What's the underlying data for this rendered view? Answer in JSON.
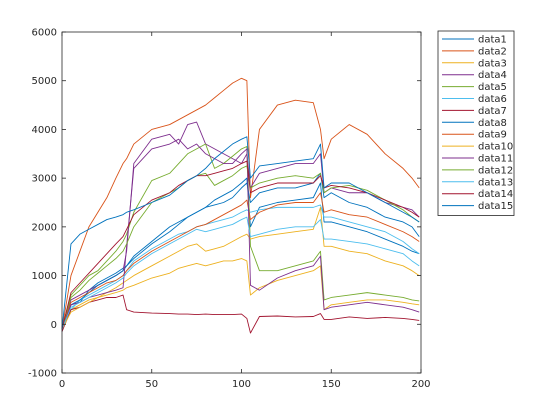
{
  "chart_data": {
    "type": "line",
    "xlim": [
      0,
      200
    ],
    "ylim": [
      -1000,
      6000
    ],
    "x_ticks": [
      0,
      50,
      100,
      150,
      200
    ],
    "y_ticks": [
      -1000,
      0,
      1000,
      2000,
      3000,
      4000,
      5000,
      6000
    ],
    "x_tick_labels": [
      "0",
      "50",
      "100",
      "150",
      "200"
    ],
    "y_tick_labels": [
      "-1000",
      "0",
      "1000",
      "2000",
      "3000",
      "4000",
      "5000",
      "6000"
    ],
    "grid": false,
    "legend_position": "outside-top-right",
    "x": [
      0,
      5,
      10,
      15,
      20,
      25,
      30,
      34,
      36,
      40,
      50,
      60,
      65,
      70,
      75,
      80,
      85,
      90,
      95,
      100,
      103,
      105,
      110,
      120,
      130,
      140,
      144,
      146,
      150,
      160,
      170,
      180,
      190,
      195,
      199
    ],
    "series": [
      {
        "name": "data1",
        "color": "#0072BD",
        "values": [
          -150,
          400,
          450,
          700,
          850,
          950,
          1050,
          1150,
          1200,
          1350,
          1650,
          1900,
          2050,
          2200,
          2300,
          2400,
          2550,
          2650,
          2750,
          2900,
          3000,
          2000,
          2400,
          2500,
          2550,
          2600,
          2900,
          2100,
          2100,
          2000,
          1900,
          1750,
          1600,
          1500,
          1450
        ]
      },
      {
        "name": "data2",
        "color": "#D95319",
        "values": [
          -100,
          1000,
          1500,
          2000,
          2300,
          2600,
          3000,
          3300,
          3400,
          3700,
          4000,
          4100,
          4200,
          4300,
          4400,
          4500,
          4650,
          4800,
          4950,
          5050,
          5000,
          2600,
          4000,
          4500,
          4600,
          4550,
          4000,
          3400,
          3800,
          4100,
          3900,
          3500,
          3200,
          3000,
          2800
        ]
      },
      {
        "name": "data3",
        "color": "#EDB120",
        "values": [
          -100,
          300,
          400,
          500,
          550,
          600,
          650,
          700,
          750,
          800,
          950,
          1050,
          1150,
          1200,
          1250,
          1200,
          1250,
          1300,
          1300,
          1350,
          1300,
          600,
          750,
          900,
          1000,
          1100,
          1200,
          300,
          400,
          450,
          500,
          500,
          450,
          420,
          400
        ]
      },
      {
        "name": "data4",
        "color": "#7E2F8E",
        "values": [
          -100,
          500,
          600,
          700,
          800,
          900,
          1000,
          1100,
          1500,
          3300,
          3800,
          3900,
          3700,
          4100,
          4150,
          3700,
          3600,
          3500,
          3400,
          3300,
          3500,
          2800,
          3100,
          3200,
          3300,
          3300,
          3500,
          2700,
          2800,
          2700,
          2700,
          2500,
          2400,
          2350,
          2200
        ]
      },
      {
        "name": "data5",
        "color": "#77AC30",
        "values": [
          -100,
          600,
          800,
          1000,
          1100,
          1300,
          1500,
          1700,
          1850,
          2300,
          2950,
          3100,
          3300,
          3500,
          3600,
          3700,
          3200,
          3300,
          3450,
          3600,
          3650,
          1600,
          1100,
          1100,
          1200,
          1300,
          1500,
          500,
          550,
          600,
          650,
          600,
          550,
          500,
          480
        ]
      },
      {
        "name": "data6",
        "color": "#4DBEEE",
        "values": [
          -100,
          300,
          500,
          600,
          700,
          800,
          900,
          1000,
          1100,
          1300,
          1550,
          1750,
          1850,
          1900,
          2000,
          2050,
          2100,
          2150,
          2200,
          2300,
          2350,
          2300,
          2350,
          2400,
          2400,
          2400,
          2450,
          2200,
          2200,
          2100,
          2000,
          1900,
          1700,
          1550,
          1450
        ]
      },
      {
        "name": "data7",
        "color": "#A2142F",
        "values": [
          -150,
          300,
          350,
          450,
          500,
          550,
          550,
          600,
          300,
          250,
          230,
          220,
          210,
          210,
          200,
          210,
          200,
          200,
          200,
          210,
          120,
          -180,
          160,
          170,
          150,
          160,
          220,
          100,
          100,
          150,
          120,
          140,
          120,
          100,
          80
        ]
      },
      {
        "name": "data8",
        "color": "#0072BD",
        "values": [
          -50,
          400,
          500,
          650,
          800,
          900,
          1000,
          1100,
          1200,
          1400,
          1700,
          2000,
          2100,
          2200,
          2300,
          2400,
          2450,
          2500,
          2600,
          2800,
          2900,
          2500,
          2700,
          2800,
          2800,
          2900,
          3100,
          2600,
          2700,
          2500,
          2400,
          2200,
          2100,
          2000,
          1800
        ]
      },
      {
        "name": "data9",
        "color": "#D95319",
        "values": [
          -100,
          450,
          550,
          650,
          750,
          850,
          900,
          1000,
          1100,
          1250,
          1500,
          1700,
          1800,
          1900,
          2000,
          2050,
          2150,
          2250,
          2350,
          2450,
          2550,
          2150,
          2300,
          2450,
          2500,
          2500,
          2700,
          2300,
          2350,
          2250,
          2200,
          2050,
          1900,
          1800,
          1700
        ]
      },
      {
        "name": "data10",
        "color": "#EDB120",
        "values": [
          -100,
          250,
          350,
          450,
          550,
          650,
          750,
          850,
          900,
          1000,
          1200,
          1400,
          1500,
          1600,
          1650,
          1500,
          1550,
          1600,
          1700,
          1800,
          1850,
          1750,
          1800,
          1850,
          1900,
          1950,
          2400,
          1600,
          1600,
          1500,
          1450,
          1300,
          1200,
          1100,
          1000
        ]
      },
      {
        "name": "data11",
        "color": "#7E2F8E",
        "values": [
          -100,
          400,
          450,
          550,
          600,
          650,
          700,
          750,
          1600,
          3200,
          3600,
          3700,
          3800,
          3600,
          3700,
          3500,
          3400,
          3300,
          3300,
          3500,
          3600,
          800,
          700,
          950,
          1100,
          1200,
          1400,
          300,
          350,
          400,
          450,
          400,
          350,
          300,
          250
        ]
      },
      {
        "name": "data12",
        "color": "#77AC30",
        "values": [
          -100,
          550,
          700,
          900,
          1050,
          1200,
          1350,
          1500,
          1650,
          2000,
          2500,
          2700,
          2800,
          2950,
          3050,
          3100,
          2850,
          2950,
          3050,
          3200,
          3250,
          2800,
          2900,
          3000,
          3050,
          3000,
          3100,
          2700,
          2800,
          2850,
          2750,
          2550,
          2350,
          2200,
          2100
        ]
      },
      {
        "name": "data13",
        "color": "#4DBEEE",
        "values": [
          -100,
          350,
          450,
          550,
          650,
          750,
          850,
          950,
          1050,
          1200,
          1450,
          1650,
          1750,
          1850,
          1950,
          1900,
          1950,
          2000,
          2050,
          2150,
          2200,
          1800,
          1850,
          1950,
          2000,
          2000,
          2150,
          1750,
          1750,
          1700,
          1650,
          1550,
          1450,
          1300,
          1200
        ]
      },
      {
        "name": "data14",
        "color": "#A2142F",
        "values": [
          -100,
          650,
          850,
          1050,
          1250,
          1450,
          1650,
          1800,
          1950,
          2250,
          2550,
          2700,
          2850,
          2950,
          3050,
          3050,
          3100,
          3150,
          3200,
          3300,
          3350,
          2700,
          2800,
          2900,
          2900,
          2900,
          3050,
          2800,
          2850,
          2800,
          2700,
          2550,
          2400,
          2300,
          2200
        ]
      },
      {
        "name": "data15",
        "color": "#0072BD",
        "values": [
          -100,
          1650,
          1850,
          1950,
          2050,
          2150,
          2200,
          2250,
          2300,
          2350,
          2500,
          2650,
          2800,
          2950,
          3050,
          3200,
          3400,
          3550,
          3700,
          3800,
          3850,
          3000,
          3250,
          3300,
          3350,
          3400,
          3700,
          2800,
          2900,
          2900,
          2700,
          2500,
          2300,
          2200,
          2100
        ]
      }
    ]
  }
}
